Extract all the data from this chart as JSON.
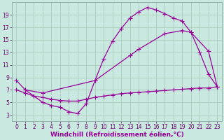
{
  "bg_color": "#c8e8e0",
  "grid_color": "#aaccbb",
  "line_color": "#990099",
  "marker": "+",
  "markersize": 4,
  "linewidth": 0.9,
  "xlabel": "Windchill (Refroidissement éolien,°C)",
  "xlabel_fontsize": 6.5,
  "tick_fontsize": 5.5,
  "xlim": [
    -0.5,
    23.5
  ],
  "ylim": [
    2,
    21
  ],
  "yticks": [
    3,
    5,
    7,
    9,
    11,
    13,
    15,
    17,
    19
  ],
  "xticks": [
    0,
    1,
    2,
    3,
    4,
    5,
    6,
    7,
    8,
    9,
    10,
    11,
    12,
    13,
    14,
    15,
    16,
    17,
    18,
    19,
    20,
    21,
    22,
    23
  ],
  "line1_x": [
    0,
    1,
    2,
    3,
    4,
    5,
    6,
    7,
    8,
    9,
    10,
    11,
    12,
    13,
    14,
    15,
    16,
    17,
    18,
    19,
    20,
    21,
    22,
    23
  ],
  "line1_y": [
    8.5,
    7.0,
    6.0,
    5.0,
    4.5,
    4.2,
    3.5,
    3.2,
    4.8,
    8.5,
    12.0,
    14.8,
    16.8,
    18.5,
    19.5,
    20.2,
    19.8,
    19.2,
    18.5,
    18.0,
    16.2,
    13.0,
    9.5,
    7.5
  ],
  "line2_x": [
    1,
    3,
    9,
    13,
    14,
    17,
    19,
    20,
    22,
    23
  ],
  "line2_y": [
    7.0,
    6.5,
    8.5,
    12.5,
    13.5,
    16.0,
    16.5,
    16.2,
    13.2,
    7.5
  ],
  "line3_x": [
    0,
    1,
    2,
    3,
    4,
    5,
    6,
    7,
    8,
    9,
    10,
    11,
    12,
    13,
    14,
    15,
    16,
    17,
    18,
    19,
    20,
    21,
    22,
    23
  ],
  "line3_y": [
    7.0,
    6.5,
    6.0,
    5.8,
    5.5,
    5.3,
    5.2,
    5.2,
    5.5,
    5.8,
    6.0,
    6.2,
    6.4,
    6.5,
    6.6,
    6.7,
    6.8,
    6.9,
    7.0,
    7.1,
    7.2,
    7.3,
    7.3,
    7.5
  ]
}
